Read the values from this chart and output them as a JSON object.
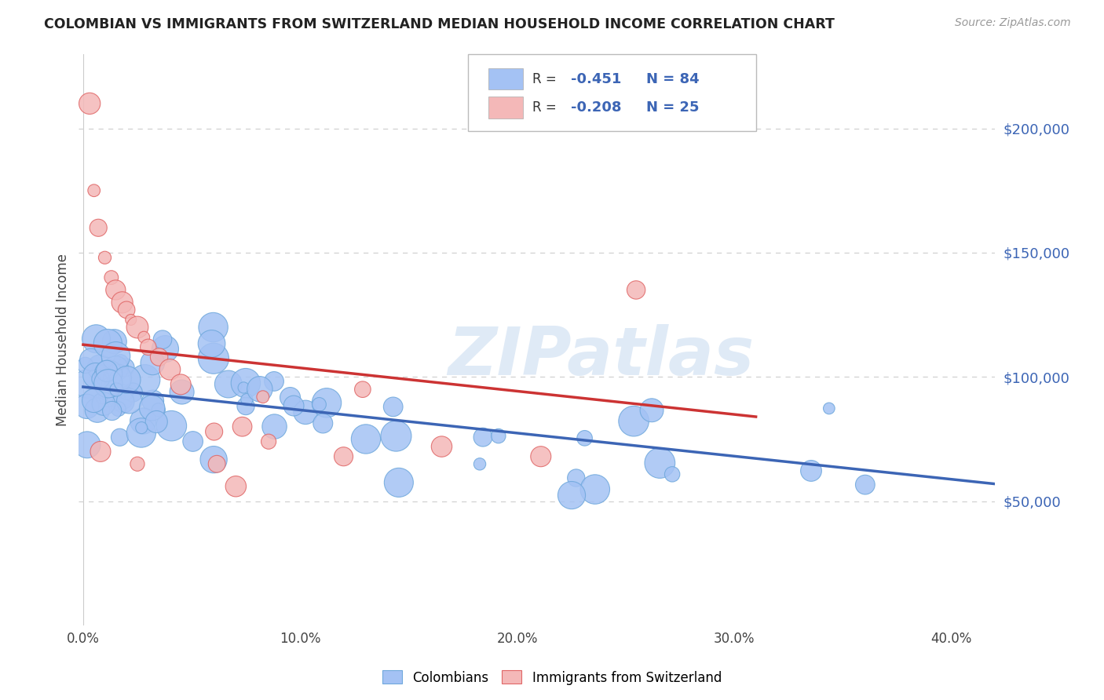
{
  "title": "COLOMBIAN VS IMMIGRANTS FROM SWITZERLAND MEDIAN HOUSEHOLD INCOME CORRELATION CHART",
  "source": "Source: ZipAtlas.com",
  "ylabel": "Median Household Income",
  "watermark": "ZIPatlas",
  "legend_label1": "Colombians",
  "legend_label2": "Immigrants from Switzerland",
  "blue_color": "#a4c2f4",
  "pink_color": "#f4b8b8",
  "blue_edge": "#6fa8dc",
  "pink_edge": "#e06666",
  "blue_line_color": "#3c65b5",
  "pink_line_color": "#cc3333",
  "legend_text_color": "#3c65b5",
  "ytick_labels": [
    "$50,000",
    "$100,000",
    "$150,000",
    "$200,000"
  ],
  "ytick_values": [
    50000,
    100000,
    150000,
    200000
  ],
  "ymin": 0,
  "ymax": 230000,
  "xmin": -0.002,
  "xmax": 0.42,
  "blue_trend_x": [
    0.0,
    0.42
  ],
  "blue_trend_y": [
    96000,
    57000
  ],
  "pink_trend_x": [
    0.0,
    0.31
  ],
  "pink_trend_y": [
    113000,
    84000
  ],
  "background_color": "#ffffff",
  "grid_color": "#d0d0d0",
  "title_fontsize": 12.5,
  "source_fontsize": 10,
  "watermark_text": "ZIPatlas",
  "xtick_positions": [
    0.0,
    0.1,
    0.2,
    0.3,
    0.4
  ],
  "xtick_labels": [
    "0.0%",
    "10.0%",
    "20.0%",
    "30.0%",
    "40.0%"
  ]
}
